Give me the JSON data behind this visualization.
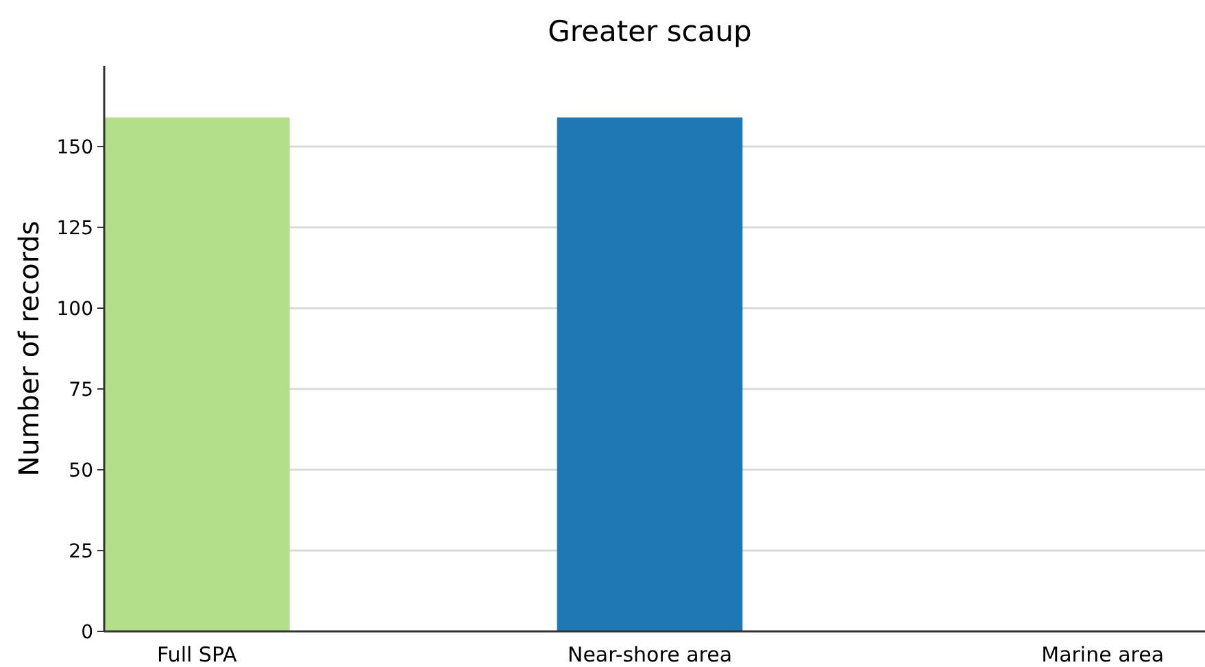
{
  "chart_data": {
    "type": "bar",
    "title": "Greater scaup",
    "ylabel": "Number of records",
    "categories": [
      "Full SPA",
      "Near-shore area",
      "Marine area"
    ],
    "values": [
      159,
      159,
      0
    ],
    "colors": [
      "#b3df8a",
      "#1f78b4",
      "#a6cee3"
    ],
    "ylim": [
      0,
      175
    ],
    "yticks": [
      0,
      25,
      50,
      75,
      100,
      125,
      150
    ],
    "grid": "y"
  }
}
